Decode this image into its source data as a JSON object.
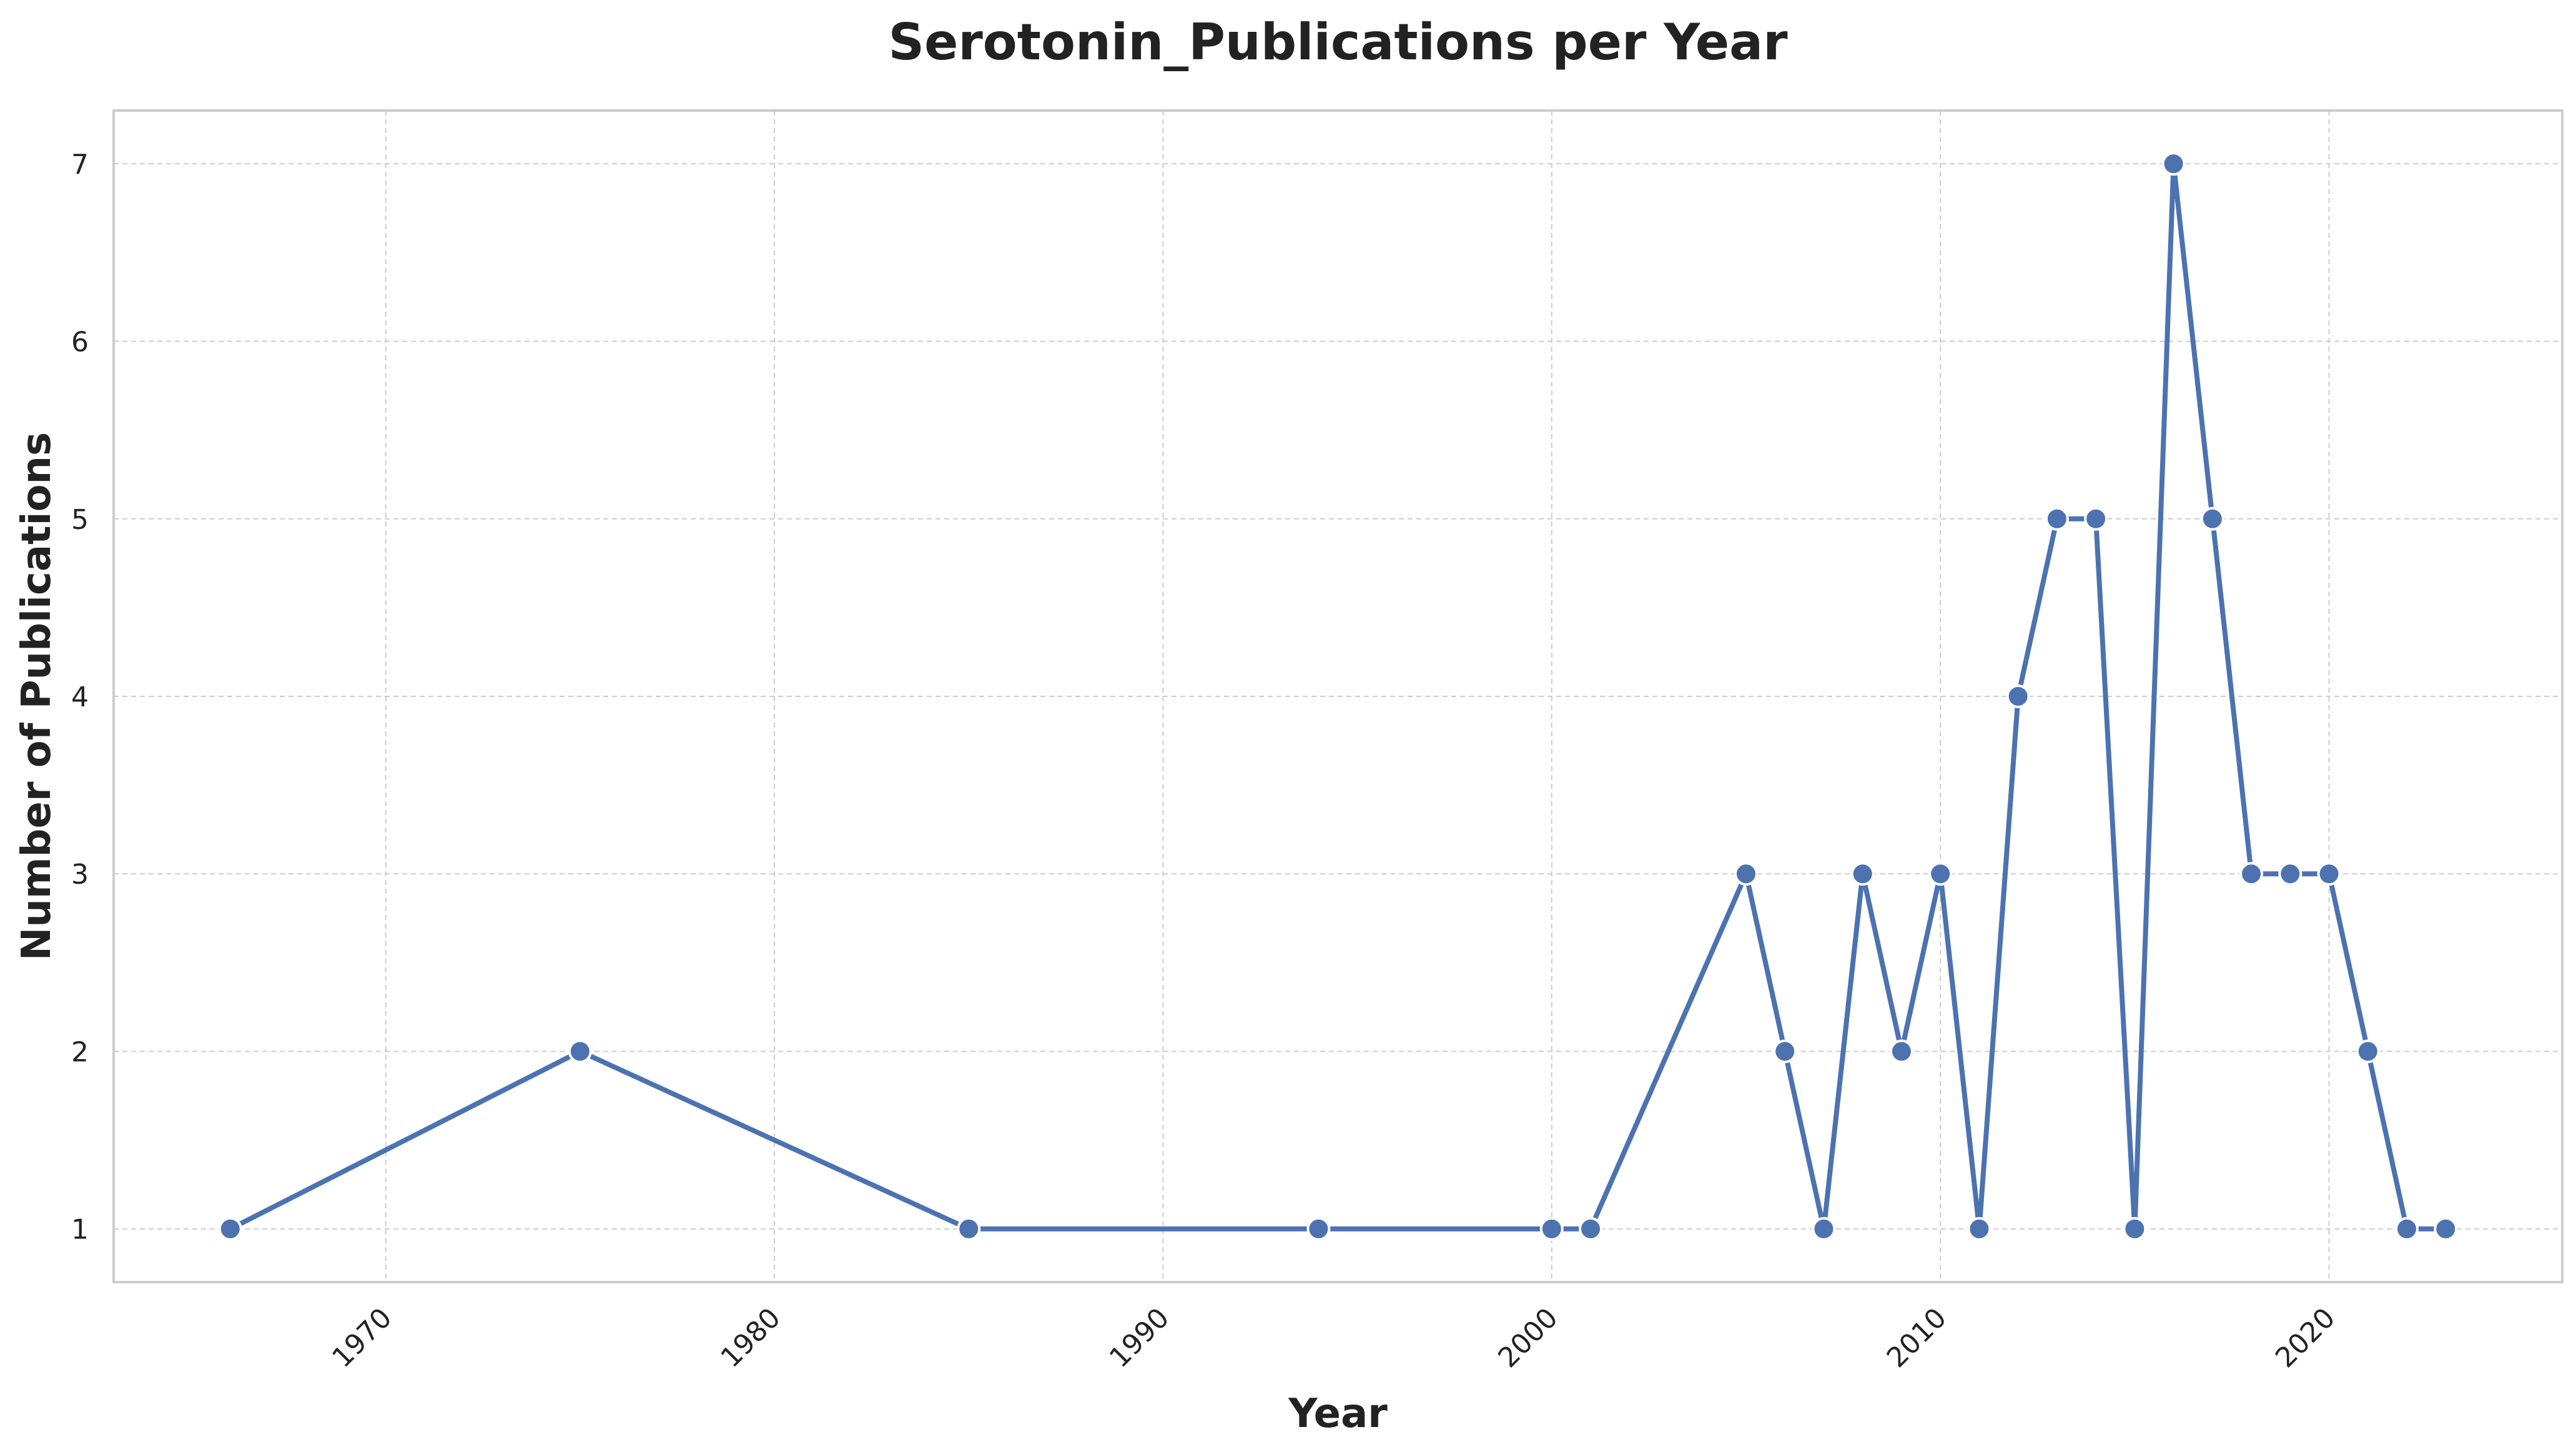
{
  "chart_data": {
    "type": "line",
    "title": "Serotonin_Publications per Year",
    "xlabel": "Year",
    "ylabel": "Number of Publications",
    "xlim": [
      1963,
      2026
    ],
    "ylim": [
      0.7,
      7.3
    ],
    "xticks": [
      1970,
      1980,
      1990,
      2000,
      2010,
      2020
    ],
    "yticks": [
      1,
      2,
      3,
      4,
      5,
      6,
      7
    ],
    "grid": true,
    "legend": "none",
    "x_tick_rotation_deg": 45,
    "color": "#4c72b0",
    "series": [
      {
        "x": [
          1966,
          1975,
          1985,
          1994,
          2000,
          2001,
          2005,
          2006,
          2007,
          2008,
          2009,
          2010,
          2011,
          2012,
          2013,
          2014,
          2015,
          2016,
          2017,
          2018,
          2019,
          2020,
          2021,
          2022,
          2023
        ],
        "values": [
          1,
          2,
          1,
          1,
          1,
          1,
          3,
          2,
          1,
          3,
          2,
          3,
          1,
          4,
          5,
          5,
          1,
          7,
          5,
          3,
          3,
          3,
          2,
          1,
          1
        ]
      }
    ]
  }
}
